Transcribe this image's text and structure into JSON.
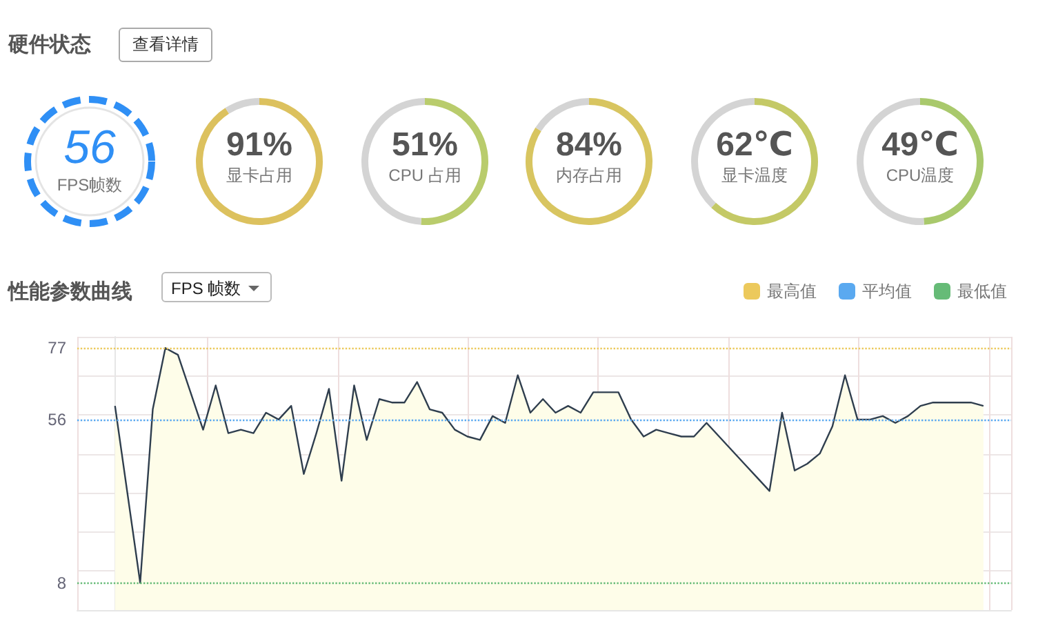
{
  "chart_data": [
    {
      "type": "other",
      "title": "硬件状态",
      "annotations": [
        "查看详情"
      ]
    },
    {
      "type": "other",
      "title": "FPS帧数",
      "annotations": [
        "56"
      ]
    },
    {
      "type": "donut",
      "title": "显卡占用",
      "categories": [
        null,
        null
      ],
      "values": [
        91,
        9
      ],
      "colors": [
        "#dcc15e",
        "#d4d4d4"
      ],
      "value_labels": [
        "91%",
        null
      ]
    },
    {
      "type": "donut",
      "title": "CPU 占用",
      "categories": [
        null,
        null
      ],
      "values": [
        51,
        49
      ],
      "colors": [
        "#b9cc6c",
        "#d4d4d4"
      ],
      "value_labels": [
        "51%",
        null
      ]
    },
    {
      "type": "donut",
      "title": "内存占用",
      "categories": [
        null,
        null
      ],
      "values": [
        84,
        16
      ],
      "colors": [
        "#d8c560",
        "#d4d4d4"
      ],
      "value_labels": [
        "84%",
        null
      ]
    },
    {
      "type": "donut",
      "title": "显卡温度",
      "categories": [
        null,
        null
      ],
      "values": [
        62,
        38
      ],
      "colors": [
        "#c4c966",
        "#d4d4d4"
      ],
      "value_labels": [
        "62℃",
        null
      ]
    },
    {
      "type": "donut",
      "title": "CPU温度",
      "categories": [
        null,
        null
      ],
      "values": [
        49,
        51
      ],
      "colors": [
        "#a9c96c",
        "#d4d4d4"
      ],
      "value_labels": [
        "49℃",
        null
      ]
    },
    {
      "type": "area",
      "title": "性能参数曲线",
      "annotations": [
        "FPS 帧数"
      ],
      "categories": [
        null,
        null,
        null,
        null,
        null,
        null,
        null,
        null,
        null,
        null,
        null,
        null,
        null,
        null,
        null,
        null,
        null,
        null,
        null,
        null,
        null,
        null,
        null,
        null,
        null,
        null,
        null,
        null,
        null,
        null,
        null,
        null,
        null,
        null,
        null,
        null,
        null,
        null,
        null,
        null,
        null,
        null,
        null,
        null,
        null,
        null,
        null,
        null,
        null,
        null,
        null,
        null,
        null,
        null,
        null,
        null,
        null,
        null,
        null,
        null,
        null,
        null,
        null,
        null,
        null,
        null,
        null,
        null,
        null,
        null
      ],
      "series": [
        {
          "color": "#2f3e4e",
          "values": [
            60,
            34,
            8,
            59,
            77,
            75,
            64,
            53,
            66,
            52,
            53,
            52,
            58,
            56,
            60,
            40,
            52,
            65,
            38,
            66,
            50,
            62,
            61,
            61,
            67,
            59,
            58,
            53,
            51,
            50,
            57,
            55,
            69,
            58,
            62,
            58,
            60,
            58,
            64,
            64,
            64,
            56,
            51,
            53,
            52,
            51,
            51,
            55,
            51,
            47,
            43,
            39,
            35,
            58,
            41,
            43,
            46,
            54,
            69,
            56,
            56,
            57,
            55,
            57,
            60,
            61,
            61,
            61,
            61,
            60
          ]
        }
      ],
      "ylim": [
        0,
        80.3
      ],
      "yticks": [
        {
          "value": 0,
          "label": null
        },
        {
          "value": 8,
          "label": "8"
        },
        {
          "value": 11.47,
          "label": null
        },
        {
          "value": 22.94,
          "label": null
        },
        {
          "value": 34.41,
          "label": null
        },
        {
          "value": 45.89,
          "label": null
        },
        {
          "value": 56,
          "label": "56"
        },
        {
          "value": 57.36,
          "label": null
        },
        {
          "value": 68.83,
          "label": null
        },
        {
          "value": 77,
          "label": "77"
        },
        {
          "value": 80.3,
          "label": null
        }
      ],
      "grid": true,
      "legend": "top right",
      "ref_lines": [
        {
          "axis": "y",
          "value": 77,
          "label": "最高值",
          "color": "#ecc95c",
          "line_style": "dotted"
        },
        {
          "axis": "y",
          "value": 56,
          "label": "平均值",
          "color": "#5aa9f0",
          "line_style": "dotted"
        },
        {
          "axis": "y",
          "value": 8,
          "label": "最低值",
          "color": "#66bb77",
          "line_style": "dotted"
        }
      ]
    }
  ]
}
